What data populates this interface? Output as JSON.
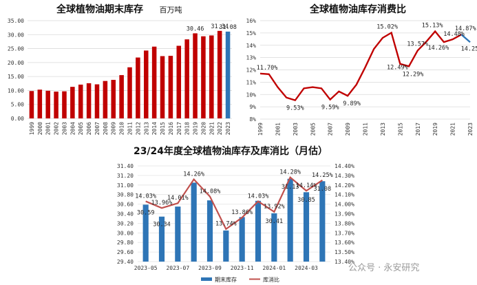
{
  "watermark": {
    "text": "公众号 · 永安研究"
  },
  "chart_data": [
    {
      "type": "bar",
      "title": "全球植物油期末库存",
      "unit": "百万吨",
      "categories": [
        "1999",
        "2000",
        "2001",
        "2002",
        "2003",
        "2004",
        "2005",
        "2006",
        "2007",
        "2008",
        "2009",
        "2010",
        "2011",
        "2012",
        "2013",
        "2014",
        "2015",
        "2016",
        "2017",
        "2018",
        "2019",
        "2020",
        "2021",
        "2022",
        "2023"
      ],
      "values": [
        9.8,
        10.3,
        9.9,
        9.6,
        9.7,
        11.3,
        12.1,
        12.6,
        12.2,
        13.4,
        13.8,
        15.5,
        18.3,
        21.8,
        24.3,
        25.7,
        22.3,
        22.4,
        26.0,
        28.3,
        30.46,
        29.4,
        29.7,
        31.34,
        31.08
      ],
      "highlight_index": 24,
      "bar_color": "#c00000",
      "highlight_color": "#2e75b6",
      "ylim": [
        0,
        35
      ],
      "yticks": [
        "0.00",
        "5.00",
        "10.00",
        "15.00",
        "20.00",
        "25.00",
        "30.00",
        "35.00"
      ],
      "data_labels": [
        {
          "index": 20,
          "text": "30.46"
        },
        {
          "index": 23,
          "text": "31.34"
        },
        {
          "index": 24,
          "text": "31.08"
        }
      ],
      "grid": true
    },
    {
      "type": "line",
      "title": "全球植物油库存消费比",
      "x": [
        "1999",
        "2000",
        "2001",
        "2002",
        "2003",
        "2004",
        "2005",
        "2006",
        "2007",
        "2008",
        "2009",
        "2010",
        "2011",
        "2012",
        "2013",
        "2014",
        "2015",
        "2016",
        "2017",
        "2018",
        "2019",
        "2020",
        "2021",
        "2022",
        "2023"
      ],
      "values": [
        11.7,
        11.65,
        10.6,
        9.75,
        9.53,
        10.5,
        10.6,
        10.5,
        9.59,
        10.25,
        9.89,
        10.8,
        12.2,
        13.7,
        14.6,
        15.02,
        12.49,
        12.29,
        13.57,
        14.3,
        15.13,
        14.26,
        14.48,
        14.87,
        14.25
      ],
      "line_color": "#c00000",
      "highlight_color": "#2e75b6",
      "ylim": [
        8,
        16
      ],
      "yticks": [
        "8%",
        "9%",
        "10%",
        "11%",
        "12%",
        "13%",
        "14%",
        "15%",
        "16%"
      ],
      "xticks": [
        "1999",
        "2001",
        "2003",
        "2005",
        "2007",
        "2009",
        "2011",
        "2013",
        "2015",
        "2017",
        "2019",
        "2021",
        "2023"
      ],
      "data_labels": [
        {
          "index": 0,
          "text": "11.70%"
        },
        {
          "index": 4,
          "text": "9.53%"
        },
        {
          "index": 8,
          "text": "9.59%"
        },
        {
          "index": 10,
          "text": "9.89%"
        },
        {
          "index": 15,
          "text": "15.02%"
        },
        {
          "index": 16,
          "text": "12.49%"
        },
        {
          "index": 17,
          "text": "12.29%"
        },
        {
          "index": 18,
          "text": "13.57%"
        },
        {
          "index": 20,
          "text": "15.13%"
        },
        {
          "index": 21,
          "text": "14.26%"
        },
        {
          "index": 22,
          "text": "14.48%"
        },
        {
          "index": 23,
          "text": "14.87%"
        },
        {
          "index": 24,
          "text": "14.25%"
        }
      ],
      "grid": true
    },
    {
      "type": "bar",
      "title": "23/24年度全球植物油库存及库消比（月估）",
      "categories": [
        "2023-05",
        "2023-06",
        "2023-07",
        "2023-08",
        "2023-09",
        "2023-10",
        "2023-11",
        "2023-12",
        "2024-01",
        "2024-02",
        "2024-03",
        "2024-04"
      ],
      "xticks": [
        "2023-05",
        "2023-07",
        "2023-09",
        "2023-11",
        "2024-01",
        "2024-03"
      ],
      "series": [
        {
          "name": "期末库存",
          "type": "bar",
          "axis": "left",
          "color": "#2e75b6",
          "values": [
            30.59,
            30.34,
            30.55,
            31.05,
            30.68,
            30.05,
            30.33,
            30.67,
            30.41,
            31.13,
            30.85,
            31.08
          ],
          "labels": [
            "30.59",
            "30.34",
            "",
            "",
            "",
            "",
            "",
            "",
            "30.41",
            "31.13",
            "30.85",
            "31.08"
          ]
        },
        {
          "name": "库消比",
          "type": "line",
          "axis": "right",
          "color": "#c0504d",
          "values": [
            14.03,
            13.96,
            14.01,
            14.26,
            14.08,
            13.74,
            13.86,
            14.03,
            13.92,
            14.28,
            14.14,
            14.25
          ],
          "labels": [
            "14.03%",
            "13.96%",
            "14.01%",
            "14.26%",
            "14.08%",
            "13.74%",
            "13.86%",
            "14.03%",
            "13.92%",
            "14.28%",
            "14.14%",
            "14.25%"
          ]
        }
      ],
      "ylim_left": [
        29.4,
        31.4
      ],
      "yticks_left": [
        "29.40",
        "29.60",
        "29.80",
        "30.00",
        "30.20",
        "30.40",
        "30.60",
        "30.80",
        "31.00",
        "31.20",
        "31.40"
      ],
      "ylim_right": [
        13.4,
        14.4
      ],
      "yticks_right": [
        "13.40%",
        "13.50%",
        "13.60%",
        "13.70%",
        "13.80%",
        "13.90%",
        "14.00%",
        "14.10%",
        "14.20%",
        "14.30%",
        "14.40%"
      ],
      "legend_position": "bottom",
      "grid": true
    }
  ]
}
